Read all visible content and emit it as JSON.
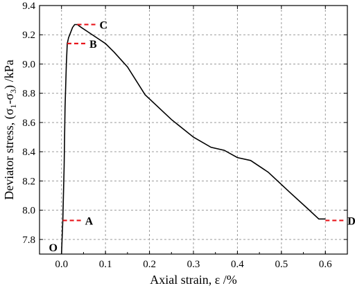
{
  "chart_data": {
    "type": "line",
    "xlabel": "Axial strain, ε /%",
    "ylabel_main": "Deviator stress, (σ",
    "ylabel_sub1": "1",
    "ylabel_mid": "-σ",
    "ylabel_sub3": "3",
    "ylabel_end": ") /kPa",
    "xlim": [
      -0.05,
      0.65
    ],
    "ylim": [
      7.7,
      9.4
    ],
    "xticks": [
      0.0,
      0.1,
      0.2,
      0.3,
      0.4,
      0.5,
      0.6
    ],
    "xtick_labels": [
      "0.0",
      "0.1",
      "0.2",
      "0.3",
      "0.4",
      "0.5",
      "0.6"
    ],
    "yticks": [
      7.8,
      8.0,
      8.2,
      8.4,
      8.6,
      8.8,
      9.0,
      9.2,
      9.4
    ],
    "ytick_labels": [
      "7.8",
      "8.0",
      "8.2",
      "8.4",
      "8.6",
      "8.8",
      "9.0",
      "9.2",
      "9.4"
    ],
    "grid": true,
    "series": [
      {
        "x": [
          0.0,
          0.003,
          0.006,
          0.008,
          0.011,
          0.013,
          0.016,
          0.02,
          0.025,
          0.03,
          0.036,
          0.045,
          0.06,
          0.08,
          0.1,
          0.12,
          0.15,
          0.19,
          0.25,
          0.3,
          0.34,
          0.37,
          0.4,
          0.43,
          0.47,
          0.52,
          0.56,
          0.585,
          0.6
        ],
        "y": [
          7.7,
          7.93,
          8.3,
          8.7,
          9.0,
          9.14,
          9.18,
          9.21,
          9.25,
          9.27,
          9.27,
          9.25,
          9.22,
          9.18,
          9.14,
          9.08,
          8.98,
          8.79,
          8.62,
          8.5,
          8.43,
          8.41,
          8.36,
          8.34,
          8.26,
          8.12,
          8.01,
          7.94,
          7.94
        ]
      }
    ],
    "annotations": [
      {
        "label": "O",
        "x": 0.0,
        "y": 7.7
      },
      {
        "label": "A",
        "x": 0.003,
        "y": 7.93
      },
      {
        "label": "B",
        "x": 0.013,
        "y": 9.14
      },
      {
        "label": "C",
        "x": 0.036,
        "y": 9.27
      },
      {
        "label": "D",
        "x": 0.6,
        "y": 7.93
      }
    ],
    "marker_color": "#e8141a"
  }
}
